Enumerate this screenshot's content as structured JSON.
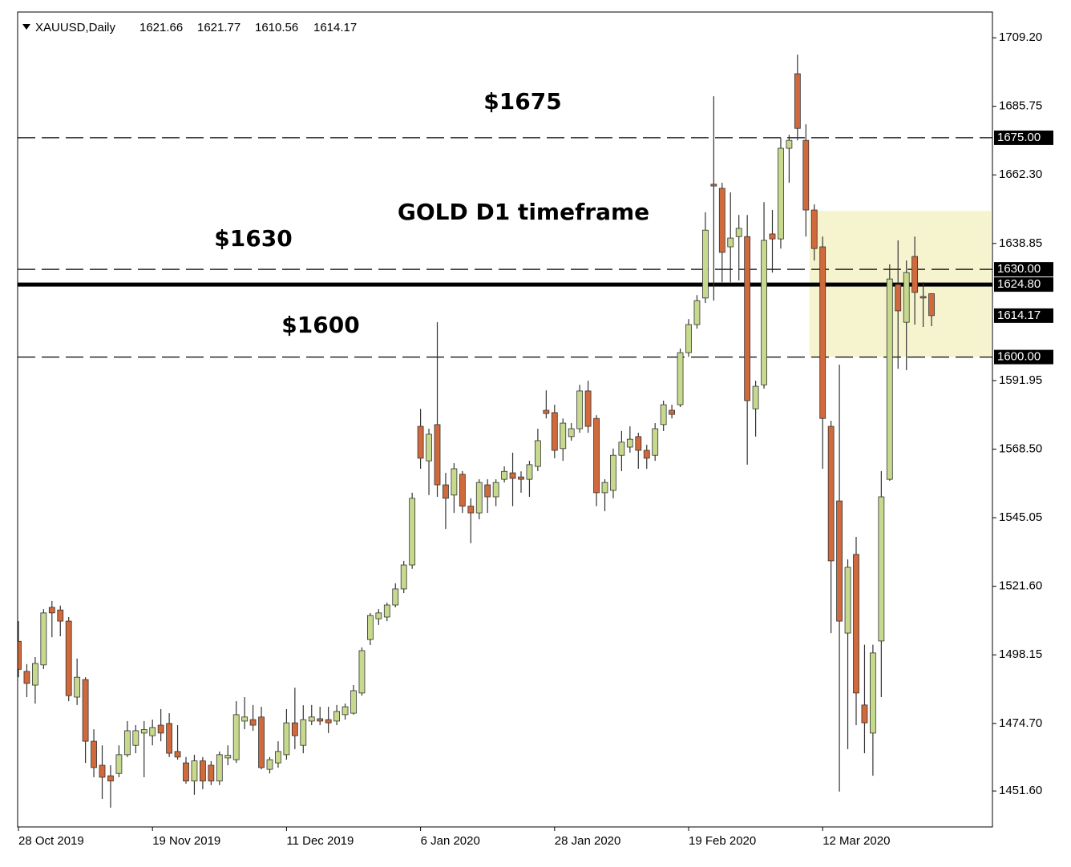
{
  "chart_data": {
    "type": "candlestick",
    "title": "XAUUSD,Daily",
    "categories": [
      "28 Oct 2019",
      null,
      null,
      null,
      null,
      null,
      null,
      null,
      null,
      null,
      null,
      null,
      null,
      null,
      null,
      null,
      "19 Nov 2019",
      null,
      null,
      null,
      null,
      null,
      null,
      null,
      null,
      null,
      null,
      null,
      null,
      null,
      null,
      null,
      "11 Dec 2019",
      null,
      null,
      null,
      null,
      null,
      null,
      null,
      null,
      null,
      null,
      null,
      null,
      null,
      null,
      null,
      "6 Jan 2020",
      null,
      null,
      null,
      null,
      null,
      null,
      null,
      null,
      null,
      null,
      null,
      null,
      null,
      null,
      null,
      "28 Jan 2020",
      null,
      null,
      null,
      null,
      null,
      null,
      null,
      null,
      null,
      null,
      null,
      null,
      null,
      null,
      null,
      "19 Feb 2020",
      null,
      null,
      null,
      null,
      null,
      null,
      null,
      null,
      null,
      null,
      null,
      null,
      null,
      null,
      null,
      "12 Mar 2020",
      null,
      null,
      null,
      null,
      null,
      null,
      null,
      null,
      null,
      null,
      null,
      null,
      null
    ],
    "open": [
      1502.8,
      1492.5,
      1487.8,
      1494.7,
      1514.4,
      1513.5,
      1509.7,
      1483.7,
      1489.7,
      1468.6,
      1460.4,
      1456.8,
      1457.6,
      1464.0,
      1467.2,
      1471.4,
      1470.5,
      1474.1,
      1474.7,
      1465.1,
      1461.2,
      1455.0,
      1461.9,
      1460.4,
      1455.0,
      1462.9,
      1462.3,
      1475.5,
      1476.0,
      1476.9,
      1459.0,
      1461.2,
      1464.0,
      1474.9,
      1467.2,
      1475.5,
      1476.3,
      1476.0,
      1475.5,
      1477.7,
      1478.2,
      1485.1,
      1503.4,
      1510.5,
      1511.1,
      1515.2,
      1520.7,
      1528.9,
      1576.3,
      1564.5,
      1576.9,
      1556.3,
      1552.8,
      1559.9,
      1549.0,
      1546.7,
      1556.3,
      1552.2,
      1558.2,
      1560.4,
      1559.0,
      1558.2,
      1562.6,
      1581.8,
      1581.0,
      1568.7,
      1572.8,
      1575.5,
      1588.4,
      1579.0,
      1553.6,
      1554.4,
      1566.4,
      1569.2,
      1572.8,
      1568.1,
      1566.4,
      1576.9,
      1581.8,
      1583.7,
      1601.5,
      1611.1,
      1620.2,
      1659.1,
      1657.7,
      1637.7,
      1641.2,
      1641.2,
      1582.3,
      1590.5,
      1642.1,
      1640.4,
      1671.4,
      1696.9,
      1674.1,
      1650.3,
      1637.7,
      1576.3,
      1550.8,
      1505.6,
      1532.5,
      1481.0,
      1471.4,
      1502.9,
      1558.2,
      1624.8,
      1611.9,
      1634.4,
      1620.7,
      1621.66
    ],
    "high": [
      1509.7,
      1495.0,
      1497.4,
      1513.8,
      1516.6,
      1515.0,
      1511.1,
      1496.9,
      1490.5,
      1472.7,
      1467.2,
      1460.4,
      1467.2,
      1475.5,
      1474.1,
      1475.5,
      1476.0,
      1479.6,
      1478.2,
      1474.1,
      1463.2,
      1464.0,
      1463.2,
      1461.8,
      1465.1,
      1467.2,
      1482.3,
      1483.7,
      1481.0,
      1480.4,
      1463.2,
      1468.6,
      1479.6,
      1486.9,
      1480.9,
      1481.0,
      1480.4,
      1480.4,
      1481.0,
      1481.5,
      1487.8,
      1500.7,
      1512.5,
      1513.8,
      1516.0,
      1522.6,
      1530.3,
      1553.6,
      1582.3,
      1575.5,
      1611.9,
      1560.4,
      1563.7,
      1561.0,
      1551.7,
      1558.2,
      1558.2,
      1558.2,
      1562.6,
      1567.3,
      1560.9,
      1564.5,
      1575.5,
      1588.6,
      1583.7,
      1579.0,
      1577.4,
      1590.5,
      1591.9,
      1580.1,
      1558.2,
      1568.7,
      1574.7,
      1576.3,
      1574.1,
      1570.0,
      1577.4,
      1585.1,
      1583.7,
      1602.9,
      1613.0,
      1621.2,
      1649.5,
      1689.2,
      1659.6,
      1656.3,
      1648.6,
      1648.6,
      1591.9,
      1653.0,
      1650.3,
      1675.0,
      1676.0,
      1703.4,
      1679.6,
      1652.2,
      1641.2,
      1578.2,
      1597.4,
      1530.8,
      1538.5,
      1501.6,
      1501.6,
      1561.0,
      1631.7,
      1639.9,
      1633.0,
      1641.2,
      1625.6,
      1621.77
    ],
    "low": [
      1490.5,
      1483.7,
      1481.5,
      1493.3,
      1504.2,
      1504.5,
      1482.3,
      1481.0,
      1461.2,
      1456.3,
      1448.9,
      1445.9,
      1456.3,
      1463.2,
      1464.5,
      1456.3,
      1467.2,
      1468.6,
      1463.2,
      1462.3,
      1454.1,
      1450.3,
      1452.2,
      1453.6,
      1453.6,
      1460.4,
      1461.2,
      1472.7,
      1472.2,
      1459.0,
      1457.6,
      1459.6,
      1462.3,
      1465.9,
      1464.5,
      1474.1,
      1474.1,
      1471.4,
      1474.1,
      1476.0,
      1477.7,
      1484.2,
      1501.5,
      1508.4,
      1509.7,
      1514.4,
      1519.3,
      1527.6,
      1561.8,
      1552.8,
      1552.2,
      1541.2,
      1546.7,
      1546.7,
      1536.3,
      1544.5,
      1546.7,
      1549.0,
      1557.1,
      1549.0,
      1553.6,
      1552.2,
      1561.0,
      1579.0,
      1565.4,
      1564.5,
      1571.4,
      1574.1,
      1574.1,
      1549.0,
      1547.3,
      1551.7,
      1561.0,
      1567.3,
      1561.8,
      1561.8,
      1564.5,
      1574.7,
      1579.0,
      1582.9,
      1600.1,
      1609.7,
      1618.5,
      1619.3,
      1625.6,
      1625.6,
      1626.2,
      1563.2,
      1572.8,
      1589.2,
      1628.9,
      1637.1,
      1659.6,
      1674.1,
      1641.2,
      1633.0,
      1561.8,
      1505.6,
      1451.4,
      1465.9,
      1474.1,
      1464.5,
      1456.8,
      1483.7,
      1557.7,
      1596.0,
      1595.5,
      1611.1,
      1610.3,
      1610.56
    ],
    "close": [
      1493.2,
      1488.4,
      1495.2,
      1512.5,
      1512.5,
      1509.7,
      1484.2,
      1490.5,
      1468.6,
      1459.6,
      1456.3,
      1455.0,
      1464.0,
      1472.2,
      1472.2,
      1472.6,
      1473.3,
      1471.4,
      1464.5,
      1463.2,
      1455.0,
      1461.9,
      1455.0,
      1455.0,
      1464.0,
      1463.8,
      1477.7,
      1476.9,
      1474.1,
      1459.6,
      1462.3,
      1465.1,
      1474.9,
      1470.5,
      1476.0,
      1476.9,
      1475.5,
      1474.9,
      1478.8,
      1480.4,
      1485.9,
      1499.6,
      1511.6,
      1512.5,
      1515.2,
      1520.7,
      1528.9,
      1551.7,
      1565.4,
      1573.6,
      1556.3,
      1551.7,
      1561.8,
      1549.0,
      1546.7,
      1557.1,
      1552.2,
      1557.1,
      1560.9,
      1558.5,
      1558.2,
      1563.2,
      1571.4,
      1580.7,
      1568.1,
      1577.4,
      1575.5,
      1588.4,
      1576.3,
      1553.6,
      1557.1,
      1566.4,
      1570.9,
      1571.9,
      1568.1,
      1565.4,
      1575.5,
      1583.7,
      1580.4,
      1601.5,
      1611.1,
      1619.3,
      1643.4,
      1658.5,
      1635.8,
      1640.7,
      1644.0,
      1585.1,
      1590.0,
      1639.9,
      1640.4,
      1671.4,
      1674.1,
      1678.2,
      1650.3,
      1637.1,
      1579.0,
      1530.3,
      1509.7,
      1528.1,
      1485.1,
      1474.9,
      1498.8,
      1552.2,
      1626.7,
      1615.8,
      1628.9,
      1622.1,
      1620.2,
      1614.17
    ],
    "up_color": "#c7d98c",
    "down_color": "#d0693b",
    "ylim": [
      1439.3,
      1718.0
    ],
    "yticks": [
      {
        "value": 1709.2,
        "label": "1709.20"
      },
      1685.75,
      {
        "value": 1662.3,
        "label": "1662.30"
      },
      1638.85,
      1591.95,
      {
        "value": 1568.5,
        "label": "1568.50"
      },
      1545.05,
      {
        "value": 1521.6,
        "label": "1521.60"
      },
      1498.15,
      {
        "value": 1474.7,
        "label": "1474.70"
      },
      {
        "value": 1451.6,
        "label": "1451.60"
      }
    ],
    "levels": [
      {
        "value": 1675,
        "label": "1675.00",
        "style": "dashed"
      },
      {
        "value": 1630,
        "label": "1630.00",
        "style": "dashed"
      },
      {
        "value": 1624.8,
        "label": "1624.80",
        "style": "solid"
      },
      {
        "value": 1600,
        "label": "1600.00",
        "style": "dashed"
      }
    ],
    "highlight_zone": [
      1600,
      1650
    ],
    "highlight_color": "#f6f4cf",
    "annotations": [
      "$1675",
      "GOLD D1 timeframe",
      "$1630",
      "$1600"
    ]
  }
}
